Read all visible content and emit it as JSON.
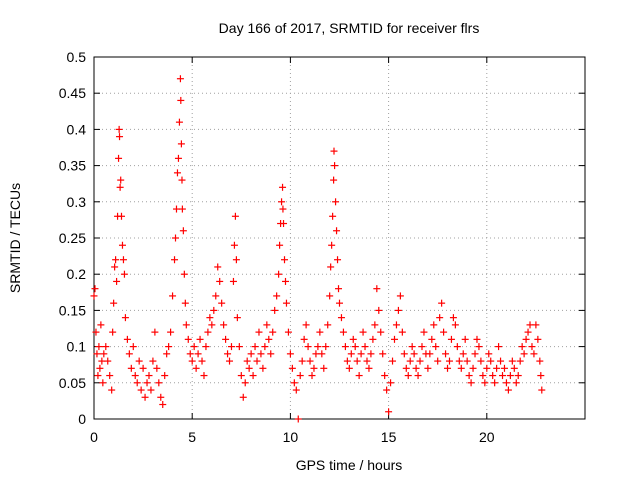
{
  "chart_data": {
    "type": "scatter",
    "title": "Day 166 of 2017, SRMTID for receiver flrs",
    "xlabel": "GPS time / hours",
    "ylabel": "SRMTID / TECUs",
    "xlim": [
      0,
      25
    ],
    "ylim": [
      0,
      0.5
    ],
    "x_ticks": [
      "0",
      "5",
      "10",
      "15",
      "20"
    ],
    "y_ticks": [
      "0",
      "0.05",
      "0.1",
      "0.15",
      "0.2",
      "0.25",
      "0.3",
      "0.35",
      "0.4",
      "0.45",
      "0.5"
    ],
    "grid": true,
    "marker": "plus",
    "color": "#ff0000",
    "series": [
      {
        "points": [
          [
            0.0,
            0.17
          ],
          [
            0.05,
            0.18
          ],
          [
            0.1,
            0.12
          ],
          [
            0.15,
            0.09
          ],
          [
            0.2,
            0.06
          ],
          [
            0.25,
            0.1
          ],
          [
            0.3,
            0.07
          ],
          [
            0.35,
            0.13
          ],
          [
            0.4,
            0.08
          ],
          [
            0.45,
            0.05
          ],
          [
            0.5,
            0.09
          ],
          [
            0.6,
            0.1
          ],
          [
            0.7,
            0.08
          ],
          [
            0.8,
            0.06
          ],
          [
            0.9,
            0.04
          ],
          [
            0.95,
            0.12
          ],
          [
            1.0,
            0.16
          ],
          [
            1.05,
            0.21
          ],
          [
            1.1,
            0.22
          ],
          [
            1.15,
            0.19
          ],
          [
            1.2,
            0.28
          ],
          [
            1.25,
            0.36
          ],
          [
            1.28,
            0.4
          ],
          [
            1.3,
            0.39
          ],
          [
            1.33,
            0.32
          ],
          [
            1.36,
            0.33
          ],
          [
            1.4,
            0.28
          ],
          [
            1.45,
            0.24
          ],
          [
            1.5,
            0.22
          ],
          [
            1.55,
            0.2
          ],
          [
            1.6,
            0.14
          ],
          [
            1.7,
            0.11
          ],
          [
            1.8,
            0.09
          ],
          [
            1.9,
            0.07
          ],
          [
            2.0,
            0.1
          ],
          [
            2.1,
            0.06
          ],
          [
            2.2,
            0.05
          ],
          [
            2.3,
            0.08
          ],
          [
            2.4,
            0.04
          ],
          [
            2.5,
            0.07
          ],
          [
            2.6,
            0.03
          ],
          [
            2.7,
            0.05
          ],
          [
            2.8,
            0.06
          ],
          [
            2.9,
            0.04
          ],
          [
            3.0,
            0.08
          ],
          [
            3.1,
            0.12
          ],
          [
            3.2,
            0.07
          ],
          [
            3.3,
            0.05
          ],
          [
            3.4,
            0.03
          ],
          [
            3.5,
            0.02
          ],
          [
            3.6,
            0.06
          ],
          [
            3.7,
            0.09
          ],
          [
            3.8,
            0.1
          ],
          [
            3.9,
            0.12
          ],
          [
            4.0,
            0.17
          ],
          [
            4.1,
            0.22
          ],
          [
            4.15,
            0.25
          ],
          [
            4.2,
            0.29
          ],
          [
            4.25,
            0.34
          ],
          [
            4.3,
            0.36
          ],
          [
            4.35,
            0.41
          ],
          [
            4.4,
            0.47
          ],
          [
            4.42,
            0.44
          ],
          [
            4.45,
            0.38
          ],
          [
            4.48,
            0.33
          ],
          [
            4.5,
            0.29
          ],
          [
            4.55,
            0.26
          ],
          [
            4.6,
            0.2
          ],
          [
            4.65,
            0.16
          ],
          [
            4.7,
            0.13
          ],
          [
            4.8,
            0.11
          ],
          [
            4.9,
            0.09
          ],
          [
            5.0,
            0.08
          ],
          [
            5.1,
            0.1
          ],
          [
            5.2,
            0.07
          ],
          [
            5.3,
            0.09
          ],
          [
            5.4,
            0.11
          ],
          [
            5.5,
            0.08
          ],
          [
            5.6,
            0.06
          ],
          [
            5.7,
            0.1
          ],
          [
            5.8,
            0.12
          ],
          [
            5.9,
            0.14
          ],
          [
            6.0,
            0.13
          ],
          [
            6.1,
            0.15
          ],
          [
            6.2,
            0.17
          ],
          [
            6.3,
            0.21
          ],
          [
            6.4,
            0.19
          ],
          [
            6.5,
            0.16
          ],
          [
            6.6,
            0.13
          ],
          [
            6.7,
            0.11
          ],
          [
            6.8,
            0.09
          ],
          [
            6.9,
            0.08
          ],
          [
            7.0,
            0.1
          ],
          [
            7.1,
            0.19
          ],
          [
            7.15,
            0.24
          ],
          [
            7.2,
            0.28
          ],
          [
            7.25,
            0.22
          ],
          [
            7.3,
            0.14
          ],
          [
            7.4,
            0.1
          ],
          [
            7.5,
            0.06
          ],
          [
            7.6,
            0.03
          ],
          [
            7.7,
            0.05
          ],
          [
            7.8,
            0.08
          ],
          [
            7.9,
            0.07
          ],
          [
            8.0,
            0.09
          ],
          [
            8.1,
            0.06
          ],
          [
            8.2,
            0.1
          ],
          [
            8.3,
            0.08
          ],
          [
            8.4,
            0.12
          ],
          [
            8.5,
            0.09
          ],
          [
            8.6,
            0.07
          ],
          [
            8.7,
            0.1
          ],
          [
            8.8,
            0.13
          ],
          [
            8.9,
            0.11
          ],
          [
            9.0,
            0.09
          ],
          [
            9.1,
            0.12
          ],
          [
            9.2,
            0.15
          ],
          [
            9.3,
            0.17
          ],
          [
            9.4,
            0.2
          ],
          [
            9.45,
            0.24
          ],
          [
            9.5,
            0.27
          ],
          [
            9.55,
            0.3
          ],
          [
            9.6,
            0.32
          ],
          [
            9.62,
            0.29
          ],
          [
            9.65,
            0.27
          ],
          [
            9.7,
            0.22
          ],
          [
            9.75,
            0.19
          ],
          [
            9.8,
            0.16
          ],
          [
            9.9,
            0.12
          ],
          [
            10.0,
            0.09
          ],
          [
            10.1,
            0.07
          ],
          [
            10.2,
            0.05
          ],
          [
            10.3,
            0.04
          ],
          [
            10.4,
            0.0
          ],
          [
            10.5,
            0.06
          ],
          [
            10.6,
            0.08
          ],
          [
            10.7,
            0.11
          ],
          [
            10.8,
            0.13
          ],
          [
            10.9,
            0.1
          ],
          [
            11.0,
            0.08
          ],
          [
            11.1,
            0.06
          ],
          [
            11.2,
            0.07
          ],
          [
            11.3,
            0.09
          ],
          [
            11.4,
            0.1
          ],
          [
            11.5,
            0.12
          ],
          [
            11.6,
            0.09
          ],
          [
            11.7,
            0.07
          ],
          [
            11.8,
            0.1
          ],
          [
            11.9,
            0.13
          ],
          [
            12.0,
            0.17
          ],
          [
            12.05,
            0.21
          ],
          [
            12.1,
            0.24
          ],
          [
            12.15,
            0.28
          ],
          [
            12.2,
            0.33
          ],
          [
            12.22,
            0.37
          ],
          [
            12.25,
            0.35
          ],
          [
            12.3,
            0.3
          ],
          [
            12.35,
            0.26
          ],
          [
            12.4,
            0.22
          ],
          [
            12.45,
            0.18
          ],
          [
            12.5,
            0.16
          ],
          [
            12.6,
            0.14
          ],
          [
            12.7,
            0.12
          ],
          [
            12.8,
            0.1
          ],
          [
            12.9,
            0.08
          ],
          [
            13.0,
            0.07
          ],
          [
            13.1,
            0.09
          ],
          [
            13.2,
            0.11
          ],
          [
            13.3,
            0.1
          ],
          [
            13.4,
            0.08
          ],
          [
            13.5,
            0.06
          ],
          [
            13.6,
            0.09
          ],
          [
            13.7,
            0.12
          ],
          [
            13.8,
            0.1
          ],
          [
            13.9,
            0.08
          ],
          [
            14.0,
            0.07
          ],
          [
            14.1,
            0.09
          ],
          [
            14.2,
            0.11
          ],
          [
            14.3,
            0.13
          ],
          [
            14.4,
            0.18
          ],
          [
            14.5,
            0.15
          ],
          [
            14.6,
            0.12
          ],
          [
            14.7,
            0.09
          ],
          [
            14.8,
            0.06
          ],
          [
            14.9,
            0.04
          ],
          [
            15.0,
            0.01
          ],
          [
            15.1,
            0.05
          ],
          [
            15.2,
            0.08
          ],
          [
            15.3,
            0.11
          ],
          [
            15.4,
            0.13
          ],
          [
            15.5,
            0.15
          ],
          [
            15.6,
            0.17
          ],
          [
            15.7,
            0.12
          ],
          [
            15.8,
            0.09
          ],
          [
            15.9,
            0.07
          ],
          [
            16.0,
            0.06
          ],
          [
            16.1,
            0.08
          ],
          [
            16.2,
            0.1
          ],
          [
            16.3,
            0.09
          ],
          [
            16.4,
            0.07
          ],
          [
            16.5,
            0.06
          ],
          [
            16.6,
            0.08
          ],
          [
            16.7,
            0.1
          ],
          [
            16.8,
            0.12
          ],
          [
            16.9,
            0.09
          ],
          [
            17.0,
            0.07
          ],
          [
            17.1,
            0.09
          ],
          [
            17.2,
            0.11
          ],
          [
            17.3,
            0.13
          ],
          [
            17.4,
            0.1
          ],
          [
            17.5,
            0.08
          ],
          [
            17.6,
            0.14
          ],
          [
            17.7,
            0.16
          ],
          [
            17.8,
            0.12
          ],
          [
            17.9,
            0.09
          ],
          [
            18.0,
            0.07
          ],
          [
            18.1,
            0.08
          ],
          [
            18.2,
            0.11
          ],
          [
            18.3,
            0.14
          ],
          [
            18.4,
            0.13
          ],
          [
            18.5,
            0.1
          ],
          [
            18.6,
            0.08
          ],
          [
            18.7,
            0.07
          ],
          [
            18.8,
            0.09
          ],
          [
            18.9,
            0.11
          ],
          [
            19.0,
            0.08
          ],
          [
            19.1,
            0.06
          ],
          [
            19.2,
            0.05
          ],
          [
            19.3,
            0.07
          ],
          [
            19.4,
            0.09
          ],
          [
            19.5,
            0.11
          ],
          [
            19.6,
            0.1
          ],
          [
            19.7,
            0.08
          ],
          [
            19.8,
            0.06
          ],
          [
            19.9,
            0.05
          ],
          [
            20.0,
            0.07
          ],
          [
            20.1,
            0.09
          ],
          [
            20.2,
            0.08
          ],
          [
            20.3,
            0.06
          ],
          [
            20.4,
            0.05
          ],
          [
            20.5,
            0.07
          ],
          [
            20.6,
            0.1
          ],
          [
            20.7,
            0.08
          ],
          [
            20.8,
            0.06
          ],
          [
            20.9,
            0.07
          ],
          [
            21.0,
            0.05
          ],
          [
            21.1,
            0.04
          ],
          [
            21.2,
            0.06
          ],
          [
            21.3,
            0.08
          ],
          [
            21.4,
            0.07
          ],
          [
            21.5,
            0.05
          ],
          [
            21.6,
            0.06
          ],
          [
            21.7,
            0.08
          ],
          [
            21.8,
            0.1
          ],
          [
            21.9,
            0.09
          ],
          [
            22.0,
            0.11
          ],
          [
            22.1,
            0.12
          ],
          [
            22.2,
            0.13
          ],
          [
            22.3,
            0.1
          ],
          [
            22.4,
            0.09
          ],
          [
            22.5,
            0.13
          ],
          [
            22.6,
            0.11
          ],
          [
            22.7,
            0.08
          ],
          [
            22.75,
            0.06
          ],
          [
            22.8,
            0.04
          ]
        ]
      }
    ]
  }
}
